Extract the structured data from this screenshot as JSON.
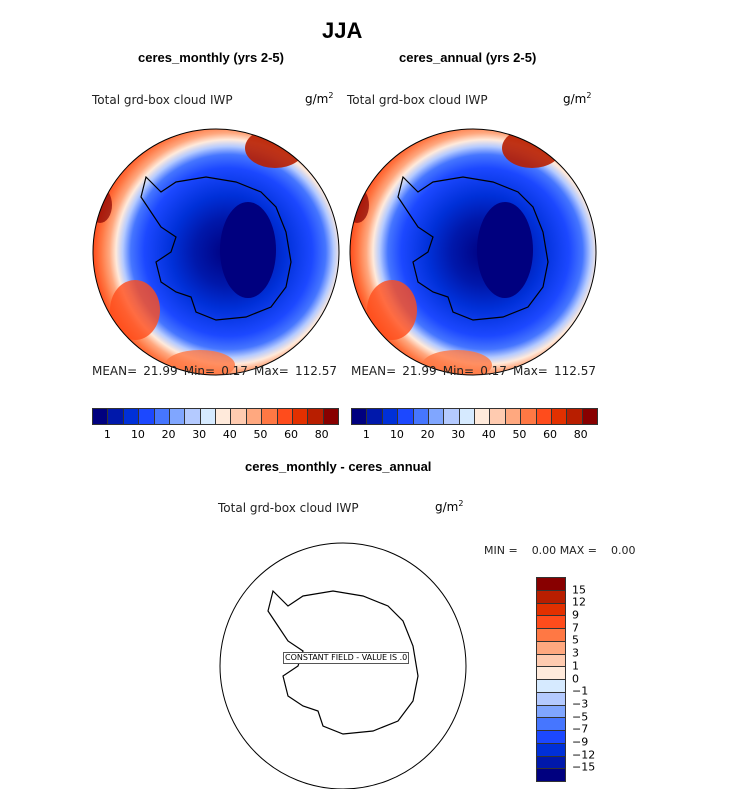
{
  "title": "JJA",
  "panels": [
    {
      "subtitle": "ceres_monthly (yrs 2-5)",
      "variable": "Total grd-box cloud IWP",
      "units_base": "g/m",
      "units_exp": "2",
      "stats": {
        "mean_label": "MEAN=",
        "mean": "21.99",
        "min_label": "Min=",
        "min": "0.17",
        "max_label": "Max=",
        "max": "112.57"
      }
    },
    {
      "subtitle": "ceres_annual (yrs 2-5)",
      "variable": "Total grd-box cloud IWP",
      "units_base": "g/m",
      "units_exp": "2",
      "stats": {
        "mean_label": "MEAN=",
        "mean": "21.99",
        "min_label": "Min=",
        "min": "0.17",
        "max_label": "Max=",
        "max": "112.57"
      }
    }
  ],
  "colorbar": {
    "colors": [
      "#00007f",
      "#0018ab",
      "#0030d8",
      "#1c48ff",
      "#4676ff",
      "#80a6ff",
      "#b4caff",
      "#d6eaff",
      "#ffeadb",
      "#ffcbb0",
      "#ffa87f",
      "#ff7844",
      "#ff4c1c",
      "#e23000",
      "#b81e00",
      "#880000"
    ],
    "labels": [
      "1",
      "10",
      "20",
      "30",
      "40",
      "50",
      "60",
      "80"
    ]
  },
  "diff": {
    "subtitle": "ceres_monthly - ceres_annual",
    "variable": "Total grd-box cloud IWP",
    "units_base": "g/m",
    "units_exp": "2",
    "min_label": "MIN =",
    "min": "0.00",
    "max_label": "MAX =",
    "max": "0.00",
    "constant_label": "CONSTANT FIELD - VALUE IS .0",
    "colorbar_labels": [
      "15",
      "12",
      "9",
      "7",
      "5",
      "3",
      "1",
      "0",
      "−1",
      "−3",
      "−5",
      "−7",
      "−9",
      "−12",
      "−15"
    ]
  }
}
